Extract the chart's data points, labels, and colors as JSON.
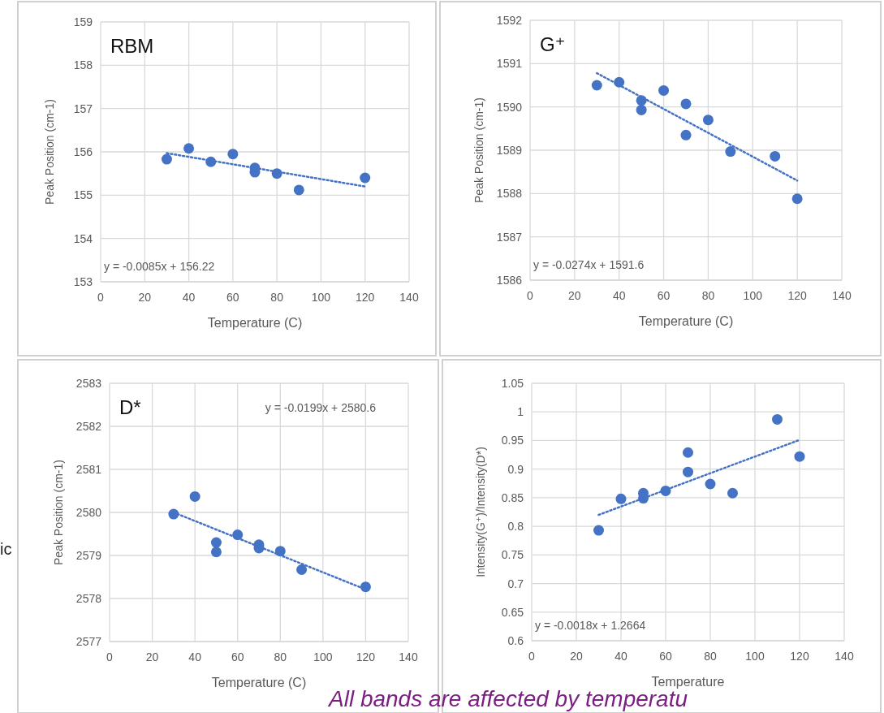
{
  "chart_data": [
    {
      "type": "scatter",
      "title": "RBM",
      "xlabel": "Temperature (C)",
      "ylabel": "Peak Position (cm-1)",
      "xlim": [
        0,
        140
      ],
      "xticks": [
        0,
        20,
        40,
        60,
        80,
        100,
        120,
        140
      ],
      "ylim": [
        153,
        159
      ],
      "yticks": [
        153,
        154,
        155,
        156,
        157,
        158,
        159
      ],
      "grid": true,
      "series": [
        {
          "color": "#4472c4",
          "marker": "circle",
          "x": [
            30,
            40,
            50,
            60,
            70,
            70,
            80,
            90,
            120
          ],
          "values": [
            155.83,
            156.08,
            155.77,
            155.95,
            155.63,
            155.53,
            155.5,
            155.12,
            155.4
          ]
        },
        {
          "type": "line",
          "color": "#4472c4",
          "line_style": "dotted",
          "x": [
            30,
            120
          ],
          "values": [
            155.97,
            155.2
          ]
        }
      ],
      "annotations": [
        "y = -0.0085x + 156.22"
      ]
    },
    {
      "type": "scatter",
      "title": "G⁺",
      "xlabel": "Temperature (C)",
      "ylabel": "Peak Position (cm-1)",
      "xlim": [
        0,
        140
      ],
      "xticks": [
        0,
        20,
        40,
        60,
        80,
        100,
        120,
        140
      ],
      "ylim": [
        1586,
        1592
      ],
      "yticks": [
        1586,
        1587,
        1588,
        1589,
        1590,
        1591,
        1592
      ],
      "grid": true,
      "series": [
        {
          "color": "#4472c4",
          "marker": "circle",
          "x": [
            30,
            40,
            50,
            50,
            60,
            70,
            70,
            80,
            90,
            110,
            120
          ],
          "values": [
            1590.5,
            1590.57,
            1590.15,
            1589.93,
            1590.38,
            1590.07,
            1589.35,
            1589.7,
            1588.97,
            1588.86,
            1587.88
          ]
        },
        {
          "type": "line",
          "color": "#4472c4",
          "line_style": "dotted",
          "x": [
            30,
            120
          ],
          "values": [
            1590.78,
            1588.3
          ]
        }
      ],
      "annotations": [
        "y = -0.0274x + 1591.6"
      ]
    },
    {
      "type": "scatter",
      "title": "D*",
      "xlabel": "Temperature (C)",
      "ylabel": "Peak Position (cm-1)",
      "xlim": [
        0,
        140
      ],
      "xticks": [
        0,
        20,
        40,
        60,
        80,
        100,
        120,
        140
      ],
      "ylim": [
        2577,
        2583
      ],
      "yticks": [
        2577,
        2578,
        2579,
        2580,
        2581,
        2582,
        2583
      ],
      "grid": true,
      "series": [
        {
          "color": "#4472c4",
          "marker": "circle",
          "x": [
            30,
            40,
            50,
            50,
            60,
            70,
            70,
            80,
            90,
            120
          ],
          "values": [
            2579.96,
            2580.37,
            2579.3,
            2579.08,
            2579.48,
            2579.25,
            2579.17,
            2579.1,
            2578.67,
            2578.27
          ]
        },
        {
          "type": "line",
          "color": "#4472c4",
          "line_style": "dotted",
          "x": [
            30,
            120
          ],
          "values": [
            2580.0,
            2578.21
          ]
        }
      ],
      "annotations": [
        "y = -0.0199x + 2580.6",
        "ic"
      ]
    },
    {
      "type": "scatter",
      "xlabel": "Temperature",
      "ylabel": "Intensity(G⁺)/Intensity(D*)",
      "xlim": [
        0,
        140
      ],
      "xticks": [
        0,
        20,
        40,
        60,
        80,
        100,
        120,
        140
      ],
      "ylim": [
        0.6,
        1.05
      ],
      "yticks": [
        0.6,
        0.65,
        0.7,
        0.75,
        0.8,
        0.85,
        0.9,
        0.95,
        1,
        1.05
      ],
      "grid": true,
      "series": [
        {
          "color": "#4472c4",
          "marker": "circle",
          "x": [
            30,
            40,
            50,
            50,
            60,
            70,
            70,
            80,
            90,
            110,
            120
          ],
          "values": [
            0.793,
            0.848,
            0.858,
            0.849,
            0.862,
            0.929,
            0.895,
            0.874,
            0.858,
            0.987,
            0.922
          ]
        },
        {
          "type": "line",
          "color": "#4472c4",
          "line_style": "dotted",
          "x": [
            30,
            120
          ],
          "values": [
            0.82,
            0.951
          ]
        }
      ],
      "annotations": [
        "y = -0.0018x + 1.2664",
        "All bands are affected by temperatu"
      ]
    }
  ]
}
